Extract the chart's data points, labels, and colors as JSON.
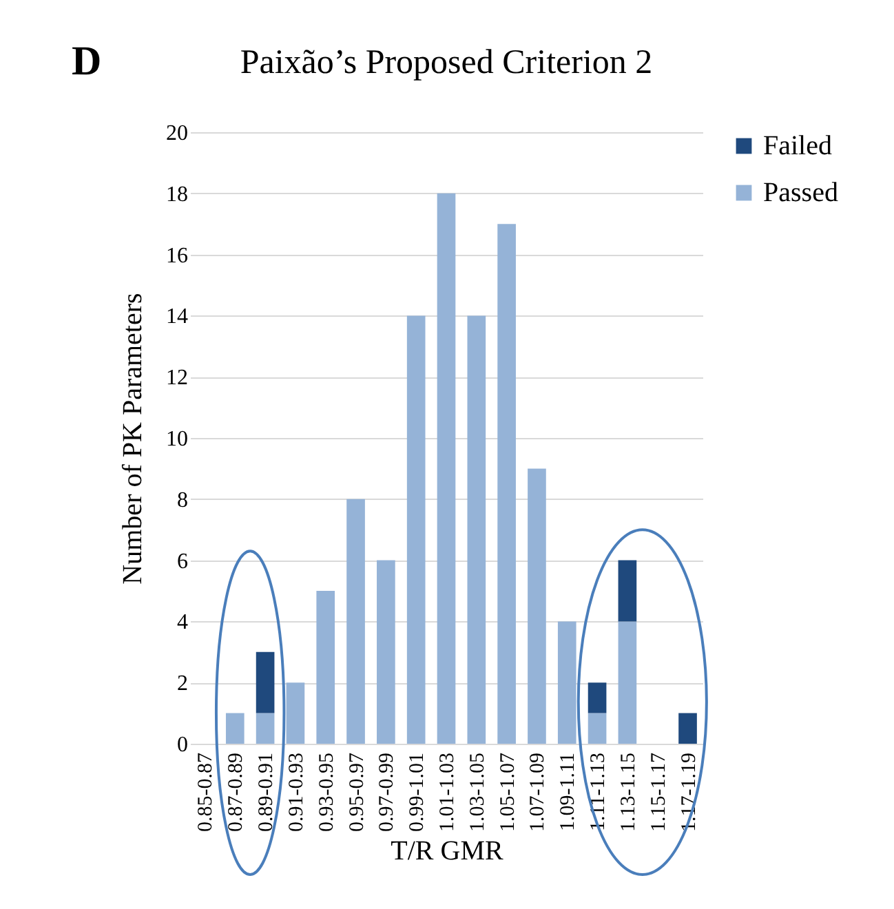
{
  "chart_data": {
    "type": "bar",
    "title": "Paixão’s Proposed Criterion 2",
    "xlabel": "T/R GMR",
    "ylabel": "Number of PK Parameters",
    "annotations": [
      "D"
    ],
    "categories": [
      "0.85-0.87",
      "0.87-0.89",
      "0.89-0.91",
      "0.91-0.93",
      "0.93-0.95",
      "0.95-0.97",
      "0.97-0.99",
      "0.99-1.01",
      "1.01-1.03",
      "1.03-1.05",
      "1.05-1.07",
      "1.07-1.09",
      "1.09-1.11",
      "1.11-1.13",
      "1.13-1.15",
      "1.15-1.17",
      "1.17-1.19"
    ],
    "stacked": true,
    "series": [
      {
        "name": "Passed",
        "color": "#95b3d7",
        "values": [
          0,
          1,
          1,
          2,
          5,
          8,
          6,
          14,
          18,
          14,
          17,
          9,
          4,
          1,
          4,
          0,
          0
        ]
      },
      {
        "name": "Failed",
        "color": "#1f497d",
        "values": [
          0,
          0,
          2,
          0,
          0,
          0,
          0,
          0,
          0,
          0,
          0,
          0,
          0,
          1,
          2,
          0,
          1
        ]
      }
    ],
    "ylim": [
      0,
      20
    ],
    "yticks": [
      0,
      2,
      4,
      6,
      8,
      10,
      12,
      14,
      16,
      18,
      20
    ],
    "grid": "y",
    "legend": "right"
  }
}
